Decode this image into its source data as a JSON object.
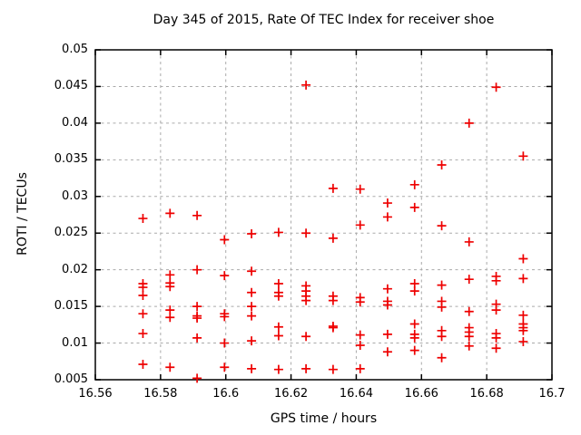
{
  "chart_data": {
    "type": "scatter",
    "title": "Day 345 of 2015, Rate Of TEC Index for receiver shoe",
    "xlabel": "GPS time / hours",
    "ylabel": "ROTI / TECUs",
    "xlim": [
      16.56,
      16.7
    ],
    "ylim": [
      0.005,
      0.05
    ],
    "grid": true,
    "legend": "none",
    "frame_color": "#000000",
    "grid_color": "#aaaaaa",
    "marker": {
      "shape": "plus",
      "color": "#ee0000",
      "size": 10,
      "stroke": 1.7
    },
    "xticks": [
      {
        "v": 16.56,
        "label": "16.56"
      },
      {
        "v": 16.58,
        "label": "16.58"
      },
      {
        "v": 16.6,
        "label": "16.6"
      },
      {
        "v": 16.62,
        "label": "16.62"
      },
      {
        "v": 16.64,
        "label": "16.64"
      },
      {
        "v": 16.66,
        "label": "16.66"
      },
      {
        "v": 16.68,
        "label": "16.68"
      },
      {
        "v": 16.7,
        "label": "16.7"
      }
    ],
    "yticks": [
      {
        "v": 0.005,
        "label": "0.005"
      },
      {
        "v": 0.01,
        "label": "0.01"
      },
      {
        "v": 0.015,
        "label": "0.015"
      },
      {
        "v": 0.02,
        "label": "0.02"
      },
      {
        "v": 0.025,
        "label": "0.025"
      },
      {
        "v": 0.03,
        "label": "0.03"
      },
      {
        "v": 0.035,
        "label": "0.035"
      },
      {
        "v": 0.04,
        "label": "0.04"
      },
      {
        "v": 0.045,
        "label": "0.045"
      },
      {
        "v": 0.05,
        "label": "0.05"
      }
    ],
    "series": [
      {
        "name": "ROTI",
        "points": [
          [
            16.5746,
            0.027
          ],
          [
            16.5746,
            0.0181
          ],
          [
            16.5746,
            0.0176
          ],
          [
            16.5746,
            0.0165
          ],
          [
            16.5746,
            0.014
          ],
          [
            16.5746,
            0.0113
          ],
          [
            16.5746,
            0.0071
          ],
          [
            16.5829,
            0.0277
          ],
          [
            16.5829,
            0.0193
          ],
          [
            16.5829,
            0.0182
          ],
          [
            16.5829,
            0.0177
          ],
          [
            16.5829,
            0.0145
          ],
          [
            16.5829,
            0.0135
          ],
          [
            16.5829,
            0.0067
          ],
          [
            16.5912,
            0.0274
          ],
          [
            16.5912,
            0.02
          ],
          [
            16.5912,
            0.015
          ],
          [
            16.5912,
            0.0137
          ],
          [
            16.5912,
            0.0134
          ],
          [
            16.5912,
            0.0107
          ],
          [
            16.5912,
            0.0052
          ],
          [
            16.5996,
            0.0241
          ],
          [
            16.5996,
            0.0192
          ],
          [
            16.5996,
            0.014
          ],
          [
            16.5996,
            0.0136
          ],
          [
            16.5996,
            0.01
          ],
          [
            16.5996,
            0.0067
          ],
          [
            16.6079,
            0.0249
          ],
          [
            16.6079,
            0.0198
          ],
          [
            16.6079,
            0.0169
          ],
          [
            16.6079,
            0.015
          ],
          [
            16.6079,
            0.0137
          ],
          [
            16.6079,
            0.0103
          ],
          [
            16.6079,
            0.0065
          ],
          [
            16.6162,
            0.0251
          ],
          [
            16.6162,
            0.0181
          ],
          [
            16.6162,
            0.0169
          ],
          [
            16.6162,
            0.0164
          ],
          [
            16.6162,
            0.0122
          ],
          [
            16.6162,
            0.011
          ],
          [
            16.6162,
            0.0064
          ],
          [
            16.6246,
            0.0452
          ],
          [
            16.6246,
            0.025
          ],
          [
            16.6246,
            0.0178
          ],
          [
            16.6246,
            0.0171
          ],
          [
            16.6246,
            0.0164
          ],
          [
            16.6246,
            0.0158
          ],
          [
            16.6246,
            0.0109
          ],
          [
            16.6246,
            0.0065
          ],
          [
            16.6329,
            0.0311
          ],
          [
            16.6329,
            0.0243
          ],
          [
            16.6329,
            0.0164
          ],
          [
            16.6329,
            0.0158
          ],
          [
            16.6329,
            0.0123
          ],
          [
            16.6329,
            0.0121
          ],
          [
            16.6329,
            0.0064
          ],
          [
            16.6412,
            0.031
          ],
          [
            16.6412,
            0.0261
          ],
          [
            16.6412,
            0.0162
          ],
          [
            16.6412,
            0.0156
          ],
          [
            16.6412,
            0.0111
          ],
          [
            16.6412,
            0.0097
          ],
          [
            16.6412,
            0.0065
          ],
          [
            16.6496,
            0.0291
          ],
          [
            16.6496,
            0.0272
          ],
          [
            16.6496,
            0.0174
          ],
          [
            16.6496,
            0.0157
          ],
          [
            16.6496,
            0.0152
          ],
          [
            16.6496,
            0.0112
          ],
          [
            16.6496,
            0.0088
          ],
          [
            16.6579,
            0.0316
          ],
          [
            16.6579,
            0.0285
          ],
          [
            16.6579,
            0.0181
          ],
          [
            16.6579,
            0.0171
          ],
          [
            16.6579,
            0.0126
          ],
          [
            16.6579,
            0.0112
          ],
          [
            16.6579,
            0.0107
          ],
          [
            16.6579,
            0.009
          ],
          [
            16.6662,
            0.0343
          ],
          [
            16.6662,
            0.026
          ],
          [
            16.6662,
            0.0179
          ],
          [
            16.6662,
            0.0157
          ],
          [
            16.6662,
            0.0149
          ],
          [
            16.6662,
            0.0117
          ],
          [
            16.6662,
            0.0109
          ],
          [
            16.6662,
            0.008
          ],
          [
            16.6746,
            0.04
          ],
          [
            16.6746,
            0.0238
          ],
          [
            16.6746,
            0.0187
          ],
          [
            16.6746,
            0.0143
          ],
          [
            16.6746,
            0.0121
          ],
          [
            16.6746,
            0.0115
          ],
          [
            16.6746,
            0.0109
          ],
          [
            16.6746,
            0.0096
          ],
          [
            16.6829,
            0.0449
          ],
          [
            16.6829,
            0.0191
          ],
          [
            16.6829,
            0.0185
          ],
          [
            16.6829,
            0.0153
          ],
          [
            16.6829,
            0.0145
          ],
          [
            16.6829,
            0.0113
          ],
          [
            16.6829,
            0.0107
          ],
          [
            16.6829,
            0.0093
          ],
          [
            16.6912,
            0.0355
          ],
          [
            16.6912,
            0.0215
          ],
          [
            16.6912,
            0.0188
          ],
          [
            16.6912,
            0.0138
          ],
          [
            16.6912,
            0.0126
          ],
          [
            16.6912,
            0.0121
          ],
          [
            16.6912,
            0.0117
          ],
          [
            16.6912,
            0.0102
          ]
        ]
      }
    ]
  }
}
